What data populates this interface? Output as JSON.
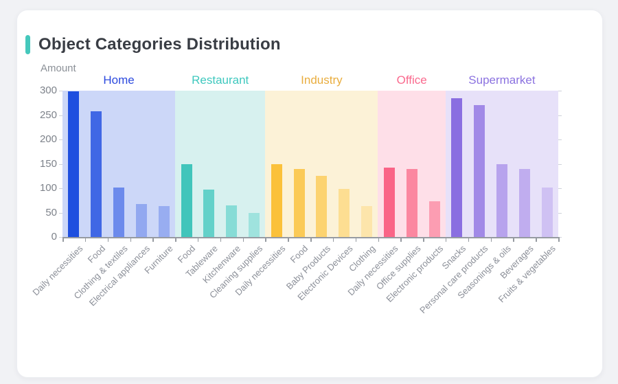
{
  "card": {
    "title": "Object Categories Distribution",
    "accent_color": "#45c8bc"
  },
  "chart_data": {
    "type": "bar",
    "title": "Object Categories Distribution",
    "xlabel": "",
    "ylabel": "Amount",
    "ylim": [
      0,
      300
    ],
    "y_ticks": [
      0,
      50,
      100,
      150,
      200,
      250,
      300
    ],
    "grid": false,
    "legend_position": "none",
    "groups": [
      {
        "name": "Home",
        "label_color": "#2b49de",
        "band_color": "#ccd7f8",
        "bars": [
          {
            "label": "Daily necessities",
            "value": 298,
            "color": "#1e4fdf"
          },
          {
            "label": "Food",
            "value": 258,
            "color": "#4067e5"
          },
          {
            "label": "Clothing & textiles",
            "value": 102,
            "color": "#6c8aec"
          },
          {
            "label": "Electrical appliances",
            "value": 68,
            "color": "#92a8f0"
          },
          {
            "label": "Furniture",
            "value": 63,
            "color": "#98adf1"
          }
        ]
      },
      {
        "name": "Restaurant",
        "label_color": "#3ec8be",
        "band_color": "#d7f1ef",
        "bars": [
          {
            "label": "Food",
            "value": 149,
            "color": "#41c5bb"
          },
          {
            "label": "Tableware",
            "value": 97,
            "color": "#63d1c9"
          },
          {
            "label": "Kitchenware",
            "value": 65,
            "color": "#86dcd6"
          },
          {
            "label": "Cleaning supplies",
            "value": 50,
            "color": "#9fe3de"
          }
        ]
      },
      {
        "name": "Industry",
        "label_color": "#e9ad3e",
        "band_color": "#fcf2d7",
        "bars": [
          {
            "label": "Daily necessities",
            "value": 150,
            "color": "#fbc13a"
          },
          {
            "label": "Food",
            "value": 139,
            "color": "#fbca56"
          },
          {
            "label": "Baby Products",
            "value": 126,
            "color": "#fcd370"
          },
          {
            "label": "Electronic Devices",
            "value": 99,
            "color": "#fdde92"
          },
          {
            "label": "Clothing",
            "value": 63,
            "color": "#fde5ab"
          }
        ]
      },
      {
        "name": "Office",
        "label_color": "#fa6a8e",
        "band_color": "#fedfe8",
        "bars": [
          {
            "label": "Daily necessities",
            "value": 142,
            "color": "#fa6487"
          },
          {
            "label": "Office supplies",
            "value": 139,
            "color": "#fb87a0"
          },
          {
            "label": "Electronic products",
            "value": 74,
            "color": "#fc9db2"
          }
        ]
      },
      {
        "name": "Supermarket",
        "label_color": "#8b72e0",
        "band_color": "#e7e1f9",
        "bars": [
          {
            "label": "Snacks",
            "value": 285,
            "color": "#8a6ee1"
          },
          {
            "label": "Personal care products",
            "value": 271,
            "color": "#a189e7"
          },
          {
            "label": "Seasonings & oils",
            "value": 149,
            "color": "#b7a3ed"
          },
          {
            "label": "Beverages",
            "value": 140,
            "color": "#c0adef"
          },
          {
            "label": "Fruits & vegetables",
            "value": 101,
            "color": "#cfc1f3"
          }
        ]
      }
    ]
  }
}
